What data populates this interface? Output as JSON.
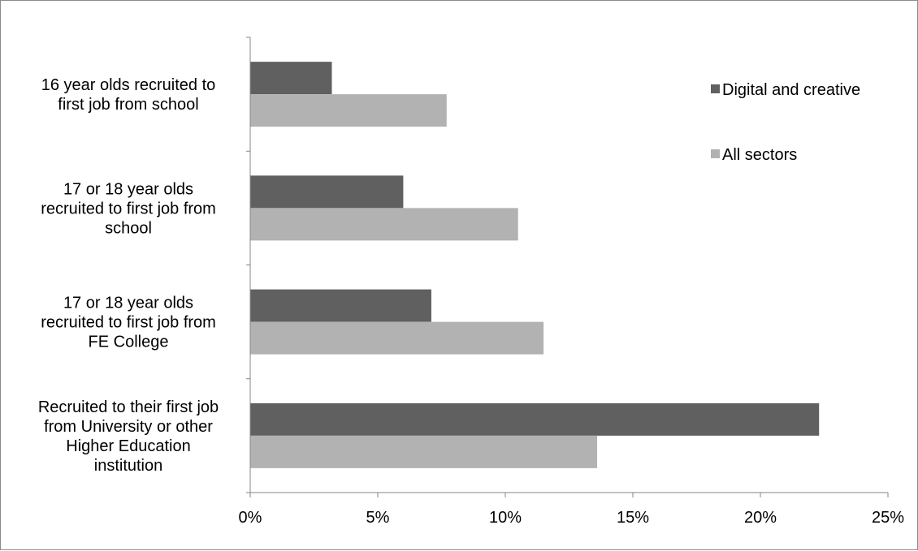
{
  "chart_data": {
    "type": "bar",
    "orientation": "horizontal",
    "categories": [
      [
        "16 year olds recruited to",
        "first job from school"
      ],
      [
        "17 or 18 year olds",
        "recruited to first job from",
        "school"
      ],
      [
        "17 or 18 year olds",
        "recruited to first job from",
        "FE College"
      ],
      [
        "Recruited to their first job",
        "from University or other",
        "Higher Education",
        "institution"
      ]
    ],
    "series": [
      {
        "name": "Digital and creative",
        "color": "#606060",
        "values": [
          3.2,
          6.0,
          7.1,
          22.3
        ]
      },
      {
        "name": "All sectors",
        "color": "#b2b2b2",
        "values": [
          7.7,
          10.5,
          11.5,
          13.6
        ]
      }
    ],
    "xlim": [
      0,
      25
    ],
    "xticks": [
      0,
      5,
      10,
      15,
      20,
      25
    ],
    "xtick_labels": [
      "0%",
      "5%",
      "10%",
      "15%",
      "20%",
      "25%"
    ],
    "grid": false,
    "legend_position": "top-right"
  }
}
